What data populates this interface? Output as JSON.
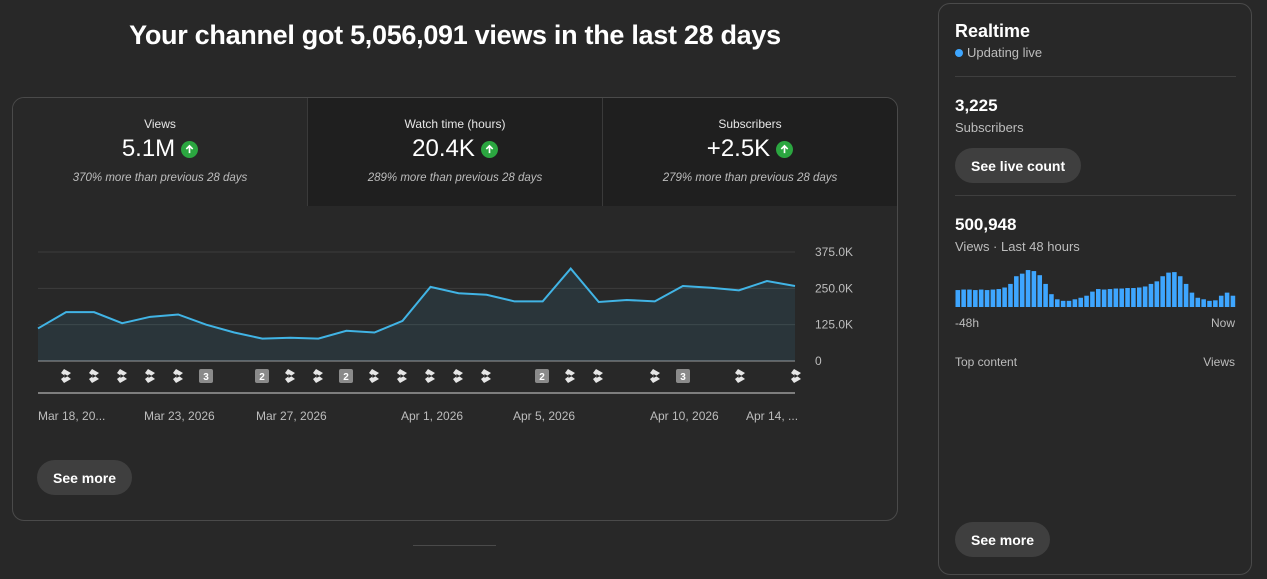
{
  "headline": "Your channel got 5,056,091 views in the last 28 days",
  "metrics": [
    {
      "label": "Views",
      "value": "5.1M",
      "sub": "370% more than previous 28 days",
      "trend": "up"
    },
    {
      "label": "Watch time (hours)",
      "value": "20.4K",
      "sub": "289% more than previous 28 days",
      "trend": "up"
    },
    {
      "label": "Subscribers",
      "value": "+2.5K",
      "sub": "279% more than previous 28 days",
      "trend": "up"
    }
  ],
  "main_see_more": "See more",
  "realtime": {
    "title": "Realtime",
    "live_text": "Updating live",
    "subscribers_count": "3,225",
    "subscribers_label": "Subscribers",
    "live_count_button": "See live count",
    "views_count": "500,948",
    "views_label": "Views · Last 48 hours",
    "axis_start": "-48h",
    "axis_end": "Now",
    "top_content_label": "Top content",
    "top_content_col": "Views",
    "see_more": "See more",
    "bars": [
      0.33,
      0.34,
      0.34,
      0.33,
      0.34,
      0.33,
      0.34,
      0.35,
      0.38,
      0.45,
      0.6,
      0.65,
      0.72,
      0.7,
      0.62,
      0.45,
      0.25,
      0.15,
      0.12,
      0.12,
      0.15,
      0.18,
      0.22,
      0.3,
      0.35,
      0.34,
      0.35,
      0.36,
      0.36,
      0.37,
      0.37,
      0.38,
      0.4,
      0.45,
      0.5,
      0.6,
      0.67,
      0.68,
      0.6,
      0.45,
      0.28,
      0.18,
      0.15,
      0.12,
      0.13,
      0.22,
      0.28,
      0.22
    ],
    "accent": "#3ea6ff"
  },
  "colors": {
    "line": "#41b4e5",
    "up": "#2ba640"
  },
  "chart_data": {
    "type": "area",
    "y_ticks": [
      "375.0K",
      "250.0K",
      "125.0K",
      "0"
    ],
    "ylim": [
      0,
      375000
    ],
    "x_labels": [
      "Mar 18, 20...",
      "Mar 23, 2026",
      "Mar 27, 2026",
      "Apr 1, 2026",
      "Apr 5, 2026",
      "Apr 10, 2026",
      "Apr 14, ..."
    ],
    "series": [
      {
        "values": [
          112000,
          168000,
          168000,
          130000,
          152000,
          160000,
          125000,
          98000,
          77000,
          80000,
          77000,
          104000,
          98000,
          138000,
          255000,
          233000,
          228000,
          205000,
          205000,
          318000,
          203000,
          210000,
          205000,
          258000,
          252000,
          243000,
          275000,
          258000
        ]
      }
    ],
    "markers": [
      {
        "type": "short"
      },
      {
        "type": "short"
      },
      {
        "type": "short"
      },
      {
        "type": "short"
      },
      {
        "type": "short"
      },
      {
        "type": "count",
        "label": "3"
      },
      {
        "type": "count",
        "label": "2"
      },
      {
        "type": "short"
      },
      {
        "type": "short"
      },
      {
        "type": "count",
        "label": "2"
      },
      {
        "type": "short"
      },
      {
        "type": "short"
      },
      {
        "type": "short"
      },
      {
        "type": "short"
      },
      {
        "type": "short"
      },
      {
        "type": "count",
        "label": "2"
      },
      {
        "type": "short"
      },
      {
        "type": "short"
      },
      {
        "type": "short"
      },
      {
        "type": "count",
        "label": "3"
      },
      {
        "type": "short"
      },
      {
        "type": "short"
      }
    ],
    "grid": true
  }
}
